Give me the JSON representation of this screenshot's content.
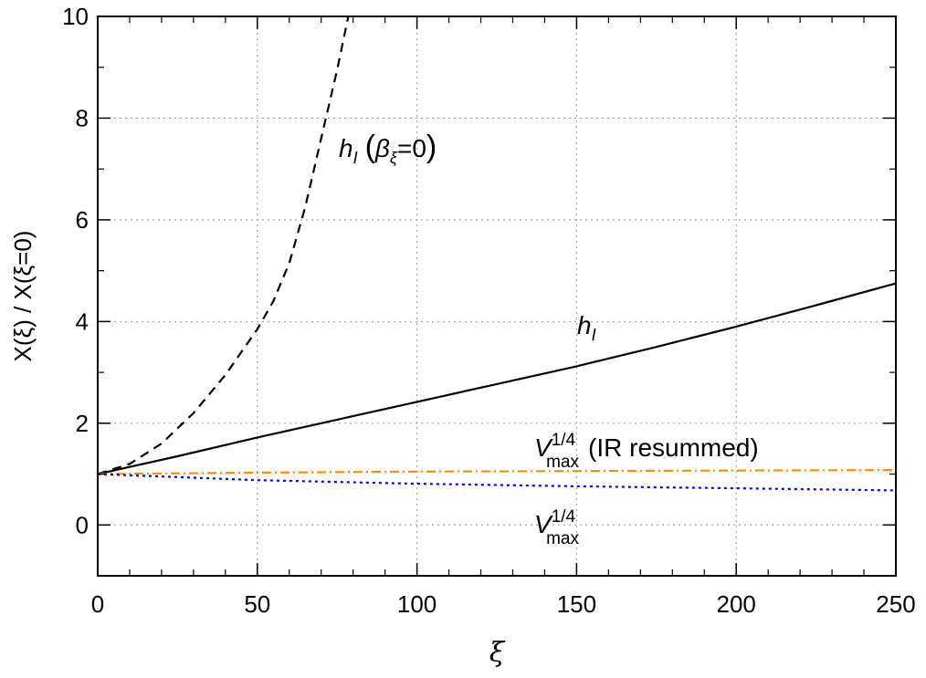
{
  "chart_data": {
    "type": "line",
    "xlabel": "ξ",
    "ylabel": "X(ξ) / X(ξ=0)",
    "xlim": [
      0,
      250
    ],
    "ylim": [
      -1,
      10
    ],
    "x_ticks": [
      "0",
      "50",
      "100",
      "150",
      "200",
      "250"
    ],
    "y_ticks": [
      "0",
      "2",
      "4",
      "6",
      "8",
      "10"
    ],
    "grid": true,
    "series": [
      {
        "key": "hI_beta0",
        "color": "#000000",
        "dash": "dashed",
        "x": [
          0,
          10,
          20,
          30,
          40,
          50,
          55,
          60,
          65,
          70,
          75,
          78.5
        ],
        "y": [
          1.0,
          1.2,
          1.6,
          2.2,
          2.95,
          3.85,
          4.4,
          5.15,
          6.25,
          7.6,
          8.95,
          10.0
        ]
      },
      {
        "key": "hI",
        "color": "#000000",
        "dash": "solid",
        "x": [
          0,
          25,
          50,
          75,
          100,
          125,
          150,
          175,
          200,
          225,
          250
        ],
        "y": [
          1.0,
          1.35,
          1.72,
          2.07,
          2.42,
          2.77,
          3.12,
          3.5,
          3.9,
          4.32,
          4.75
        ]
      },
      {
        "key": "Vmax_IR",
        "color": "#ff8c00",
        "dash": "dashdot",
        "x": [
          0,
          50,
          100,
          150,
          200,
          250
        ],
        "y": [
          1.0,
          1.03,
          1.05,
          1.06,
          1.07,
          1.08
        ]
      },
      {
        "key": "Vmax",
        "color": "#0000ff",
        "dash": "dotted",
        "x": [
          0,
          50,
          100,
          150,
          200,
          250
        ],
        "y": [
          1.0,
          0.88,
          0.81,
          0.76,
          0.72,
          0.68
        ]
      }
    ],
    "annotations": {
      "hI_beta0": {
        "base": "h",
        "sub": "I",
        "paren_left": "(",
        "beta": "β",
        "beta_sub": "ξ",
        "eq": "=0",
        "paren_right": ")"
      },
      "hI": {
        "base": "h",
        "sub": "I"
      },
      "Vmax_IR": {
        "base": "V",
        "sup": "1/4",
        "sub": "max",
        "tail": "(IR resummed)"
      },
      "Vmax": {
        "base": "V",
        "sup": "1/4",
        "sub": "max"
      }
    }
  }
}
